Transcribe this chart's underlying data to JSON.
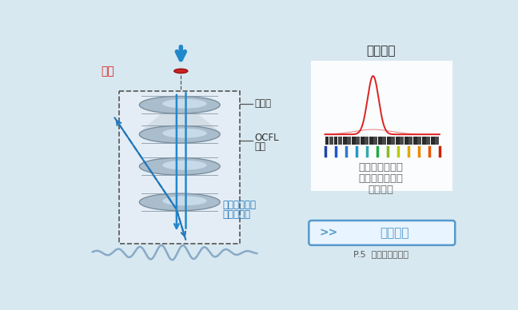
{
  "bg_color": "#d8e8f0",
  "title_right": "受光轮廓",
  "text1": "波形不会破坏，",
  "text2": "仅测量点的颜色",
  "text3": "稳定受光",
  "label_zhenkong": "针孔",
  "label_baiguang": "白色光",
  "label_ocfl1": "OCFL",
  "label_ocfl2": "模块",
  "label_rough1": "粗糙面产生的",
  "label_rough2": "多重反射光",
  "button_text": "解决事例",
  "button_sub": "P.5  粗糙面的平坦度",
  "arrow_color": "#2288cc",
  "dashed_color": "#2277bb",
  "red_color": "#dd2222",
  "spectrum_colors": [
    "#2244aa",
    "#2255cc",
    "#3377cc",
    "#2299cc",
    "#33aaaa",
    "#22aa44",
    "#88bb22",
    "#bbcc00",
    "#ddaa00",
    "#ee8800",
    "#ee5500",
    "#cc2200"
  ]
}
